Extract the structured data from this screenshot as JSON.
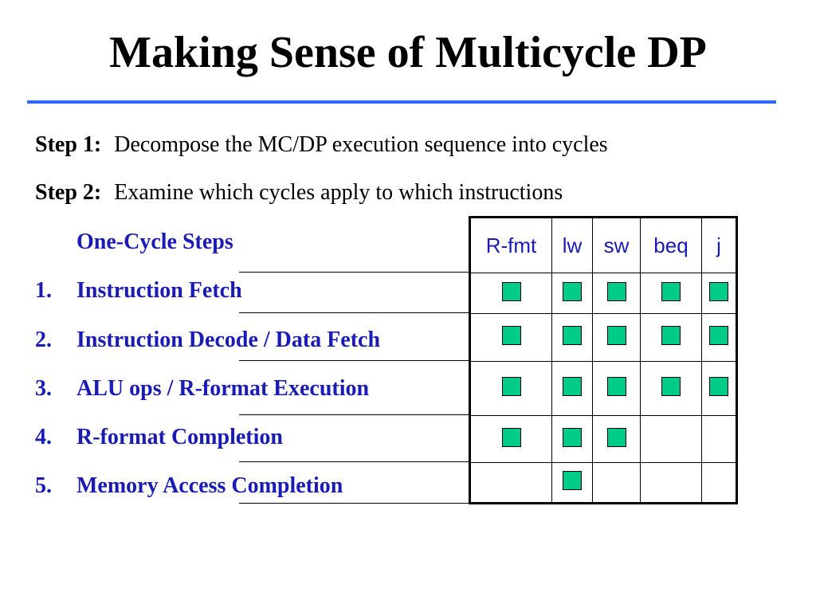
{
  "title": "Making Sense of Multicycle DP",
  "steps": [
    {
      "label": "Step 1:",
      "text": "Decompose the MC/DP execution sequence into cycles"
    },
    {
      "label": "Step 2:",
      "text": "Examine which cycles apply to which instructions"
    }
  ],
  "table_heading": "One-Cycle Steps",
  "columns": [
    "R-fmt",
    "lw",
    "sw",
    "beq",
    "j"
  ],
  "rows": [
    {
      "num": "1.",
      "label": "Instruction Fetch",
      "marks": [
        true,
        true,
        true,
        true,
        true
      ]
    },
    {
      "num": "2.",
      "label": "Instruction Decode / Data Fetch",
      "marks": [
        true,
        true,
        true,
        true,
        true
      ]
    },
    {
      "num": "3.",
      "label": "ALU ops / R-format Execution",
      "marks": [
        true,
        true,
        true,
        true,
        true
      ]
    },
    {
      "num": "4.",
      "label": "R-format Completion",
      "marks": [
        true,
        true,
        true,
        false,
        false
      ]
    },
    {
      "num": "5.",
      "label": "Memory Access Completion",
      "marks": [
        false,
        true,
        false,
        false,
        false
      ]
    }
  ],
  "colors": {
    "accent_rule": "#3366ff",
    "row_text": "#1a1ab4",
    "mark": "#00cc88"
  }
}
